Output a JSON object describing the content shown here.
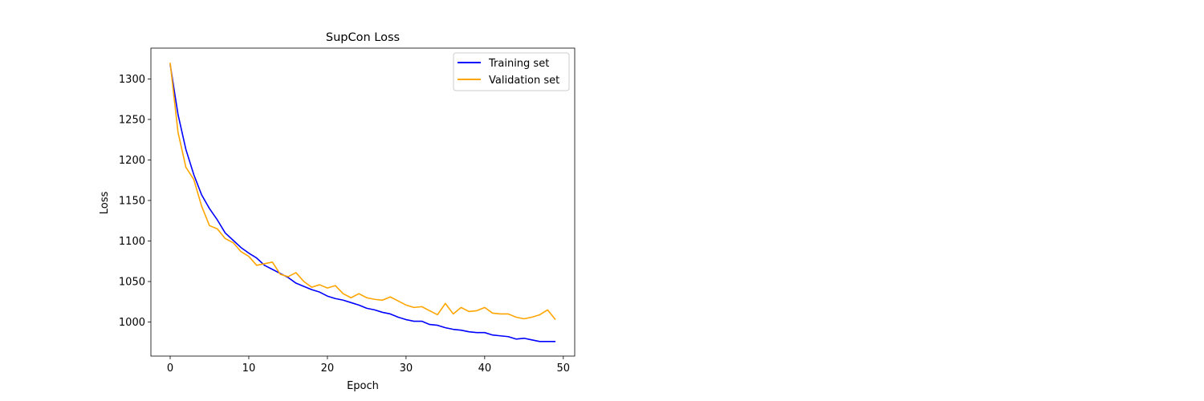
{
  "chart_data": {
    "type": "line",
    "title": "SupCon Loss",
    "xlabel": "Epoch",
    "ylabel": "Loss",
    "xlim": [
      -2.45,
      51.45
    ],
    "ylim": [
      958,
      1338
    ],
    "xticks": [
      0,
      10,
      20,
      30,
      40,
      50
    ],
    "yticks": [
      1000,
      1050,
      1100,
      1150,
      1200,
      1250,
      1300
    ],
    "grid": false,
    "legend_position": "top-right",
    "x": [
      0,
      1,
      2,
      3,
      4,
      5,
      6,
      7,
      8,
      9,
      10,
      11,
      12,
      13,
      14,
      15,
      16,
      17,
      18,
      19,
      20,
      21,
      22,
      23,
      24,
      25,
      26,
      27,
      28,
      29,
      30,
      31,
      32,
      33,
      34,
      35,
      36,
      37,
      38,
      39,
      40,
      41,
      42,
      43,
      44,
      45,
      46,
      47,
      48,
      49
    ],
    "series": [
      {
        "name": "Training set",
        "color": "#0000ff",
        "values": [
          1318,
          1256,
          1213,
          1182,
          1157,
          1140,
          1126,
          1110,
          1101,
          1092,
          1085,
          1079,
          1070,
          1065,
          1060,
          1055,
          1048,
          1044,
          1040,
          1037,
          1032,
          1029,
          1027,
          1024,
          1021,
          1017,
          1015,
          1012,
          1010,
          1006,
          1003,
          1001,
          1001,
          997,
          996,
          993,
          991,
          990,
          988,
          987,
          987,
          984,
          983,
          982,
          979,
          980,
          978,
          976,
          976,
          976
        ]
      },
      {
        "name": "Validation set",
        "color": "#ffa500",
        "values": [
          1320,
          1234,
          1191,
          1176,
          1143,
          1119,
          1115,
          1103,
          1098,
          1087,
          1081,
          1070,
          1072,
          1074,
          1059,
          1056,
          1061,
          1050,
          1043,
          1046,
          1042,
          1045,
          1035,
          1030,
          1035,
          1030,
          1028,
          1027,
          1031,
          1026,
          1021,
          1018,
          1019,
          1014,
          1009,
          1023,
          1010,
          1018,
          1013,
          1014,
          1018,
          1011,
          1010,
          1010,
          1006,
          1004,
          1006,
          1009,
          1015,
          1003
        ]
      }
    ]
  }
}
